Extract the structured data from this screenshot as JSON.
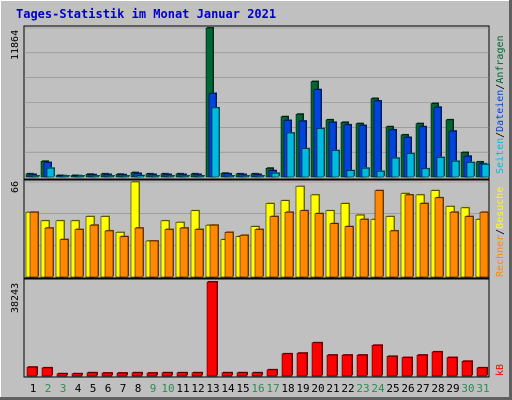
{
  "title": "Tages-Statistik im Monat Januar 2021",
  "colors": {
    "title": "#0000cc",
    "anfragen": "#006633",
    "dateien": "#0044dd",
    "seiten": "#00bbdd",
    "besuche": "#ffff00",
    "rechner": "#ff8800",
    "kb": "#ff0000",
    "weekend_label": "#2e8b57",
    "weekday_label": "#000000"
  },
  "legend": {
    "hits": {
      "anfragen": "Anfragen",
      "sep1": "/",
      "dateien": "Dateien",
      "sep2": "/",
      "seiten": "Seiten"
    },
    "visits": {
      "besuche": "Besuche",
      "sep1": "/",
      "rechner": "Rechner"
    },
    "traffic": {
      "kb": "kB"
    }
  },
  "chart_data": [
    {
      "type": "bar",
      "panel": "hits",
      "ymax_label": "11864",
      "ylim": [
        0,
        11864
      ],
      "categories": [
        "1",
        "2",
        "3",
        "4",
        "5",
        "6",
        "7",
        "8",
        "9",
        "10",
        "11",
        "12",
        "13",
        "14",
        "15",
        "16",
        "17",
        "18",
        "19",
        "20",
        "21",
        "22",
        "23",
        "24",
        "25",
        "26",
        "27",
        "28",
        "29",
        "30",
        "31"
      ],
      "weekend_days": [
        2,
        3,
        9,
        10,
        16,
        17,
        23,
        24,
        30,
        31
      ],
      "series": [
        {
          "name": "Anfragen",
          "values": [
            250,
            1250,
            120,
            120,
            220,
            250,
            220,
            350,
            250,
            250,
            250,
            250,
            11864,
            300,
            250,
            250,
            700,
            4800,
            5000,
            7600,
            4550,
            4350,
            4250,
            6250,
            4000,
            3350,
            4250,
            5850,
            4550,
            1950,
            1200
          ]
        },
        {
          "name": "Dateien",
          "values": [
            200,
            1150,
            100,
            100,
            180,
            200,
            180,
            280,
            200,
            200,
            200,
            200,
            6650,
            250,
            200,
            200,
            500,
            4500,
            4450,
            6950,
            4350,
            4150,
            4100,
            6050,
            3750,
            3150,
            4000,
            5550,
            3650,
            1650,
            1050
          ]
        },
        {
          "name": "Seiten",
          "values": [
            80,
            700,
            50,
            50,
            60,
            80,
            60,
            100,
            80,
            80,
            80,
            80,
            5500,
            80,
            60,
            60,
            300,
            3500,
            2250,
            3850,
            2100,
            500,
            700,
            450,
            1500,
            1850,
            650,
            1550,
            1250,
            1150,
            1000
          ]
        }
      ]
    },
    {
      "type": "bar",
      "panel": "visits",
      "ymax_label": "66",
      "ylim": [
        0,
        66
      ],
      "series": [
        {
          "name": "Besuche",
          "values": [
            45,
            39,
            39,
            39,
            42,
            42,
            31,
            66,
            25,
            39,
            38,
            46,
            36,
            26,
            28,
            35,
            51,
            53,
            63,
            57,
            46,
            51,
            43,
            40,
            42,
            58,
            57,
            60,
            49,
            48,
            40
          ]
        },
        {
          "name": "Rechner",
          "values": [
            45,
            34,
            26,
            33,
            36,
            32,
            28,
            34,
            25,
            33,
            34,
            33,
            36,
            31,
            29,
            33,
            42,
            45,
            46,
            44,
            37,
            35,
            40,
            60,
            32,
            57,
            51,
            55,
            45,
            42,
            45
          ]
        }
      ]
    },
    {
      "type": "bar",
      "panel": "traffic",
      "ymax_label": "38243",
      "ylim": [
        0,
        38243
      ],
      "series": [
        {
          "name": "kB",
          "values": [
            3600,
            3300,
            900,
            900,
            1300,
            1200,
            1200,
            1300,
            1200,
            1300,
            1300,
            1300,
            38243,
            1300,
            1300,
            1300,
            2500,
            9000,
            9300,
            13500,
            8500,
            8500,
            8500,
            12500,
            8000,
            7500,
            8500,
            9800,
            7500,
            6000,
            3300
          ]
        }
      ]
    }
  ]
}
